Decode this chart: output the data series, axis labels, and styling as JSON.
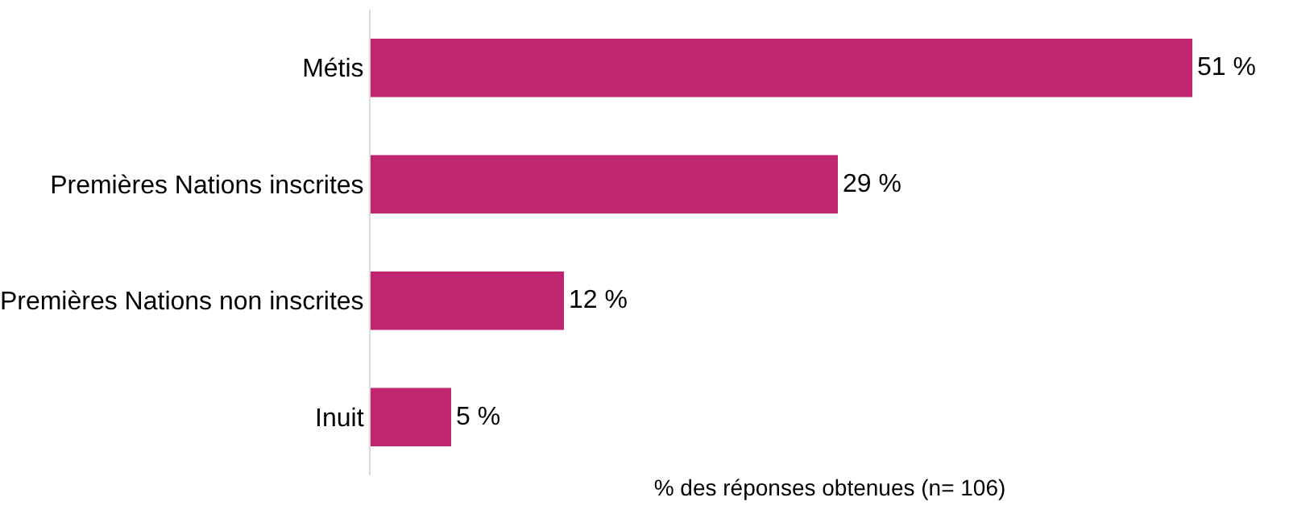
{
  "chart_data": {
    "type": "bar",
    "orientation": "horizontal",
    "categories": [
      "Métis",
      "Premières Nations inscrites",
      "Premières Nations non inscrites",
      "Inuit"
    ],
    "values": [
      51,
      29,
      12,
      5
    ],
    "value_labels": [
      "51 %",
      "29 %",
      "12 %",
      "5 %"
    ],
    "color": "#c0266f",
    "xlabel": "% des réponses obtenues (n= 106)",
    "xlim": [
      0,
      57
    ],
    "tick_labels": "y"
  }
}
